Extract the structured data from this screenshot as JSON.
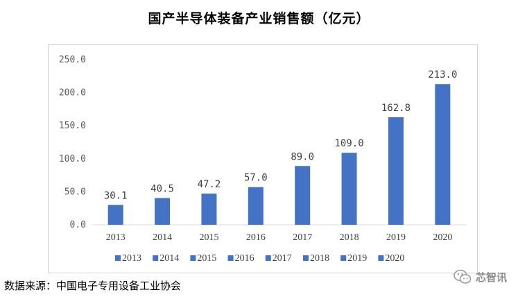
{
  "title": "国产半导体装备产业销售额（亿元）",
  "source": "数据来源：中国电子专用设备工业协会",
  "watermark": "芯智讯",
  "colors": {
    "bar": "#4472C4",
    "axis": "#d9d9d9"
  },
  "chart_data": {
    "type": "bar",
    "title": "国产半导体装备产业销售额（亿元）",
    "categories": [
      "2013",
      "2014",
      "2015",
      "2016",
      "2017",
      "2018",
      "2019",
      "2020"
    ],
    "values": [
      30.1,
      40.5,
      47.2,
      57.0,
      89.0,
      109.0,
      162.8,
      213.0
    ],
    "value_labels": [
      "30.1",
      "40.5",
      "47.2",
      "57.0",
      "89.0",
      "109.0",
      "162.8",
      "213.0"
    ],
    "yticks": [
      "0.0",
      "50.0",
      "100.0",
      "150.0",
      "200.0",
      "250.0"
    ],
    "ylim": [
      0,
      250
    ],
    "grid": false,
    "legend": {
      "placement": "bottom",
      "entries": [
        "2013",
        "2014",
        "2015",
        "2016",
        "2017",
        "2018",
        "2019",
        "2020"
      ]
    }
  }
}
